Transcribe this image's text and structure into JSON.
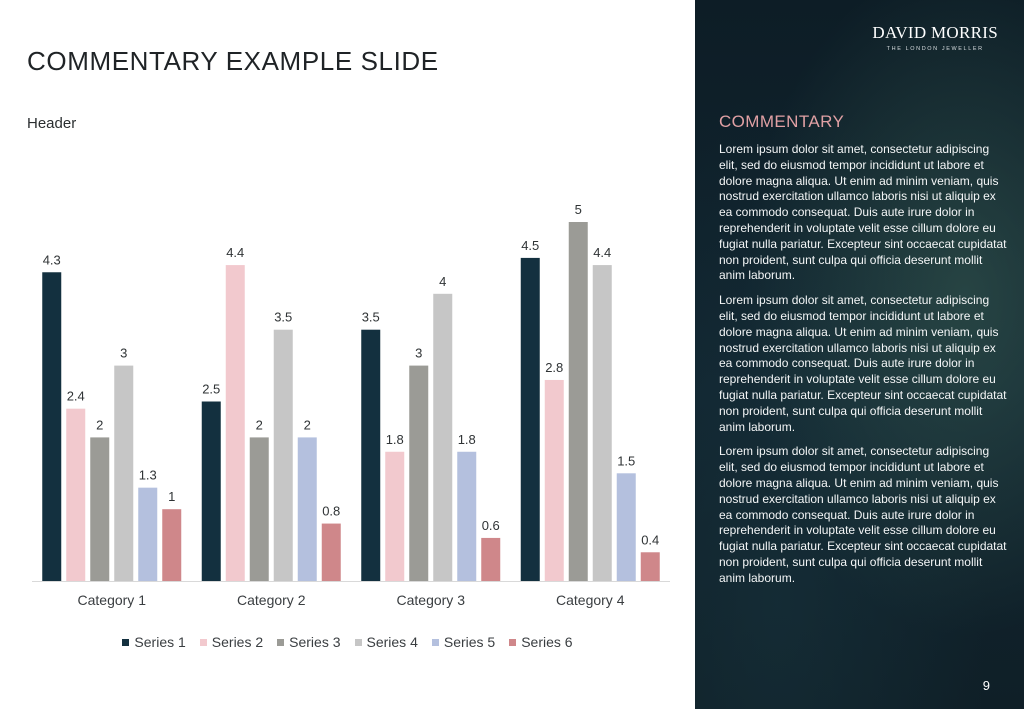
{
  "slide": {
    "title": "COMMENTARY EXAMPLE SLIDE",
    "header": "Header",
    "page_number": "9"
  },
  "brand": {
    "name": "DAVID MORRIS",
    "tagline": "THE LONDON JEWELLER"
  },
  "commentary": {
    "title": "COMMENTARY",
    "paragraphs": [
      "Lorem ipsum dolor sit amet, consectetur adipiscing elit, sed do eiusmod tempor incididunt ut labore et dolore magna aliqua. Ut enim ad minim veniam, quis nostrud exercitation ullamco laboris nisi ut aliquip ex ea commodo consequat. Duis aute irure dolor in reprehenderit in voluptate velit esse cillum dolore eu fugiat nulla pariatur. Excepteur sint occaecat cupidatat non proident, sunt culpa qui officia deserunt mollit anim laborum.",
      "Lorem ipsum dolor sit amet, consectetur adipiscing elit, sed do eiusmod tempor incididunt ut labore et dolore magna aliqua. Ut enim ad minim veniam, quis nostrud exercitation ullamco laboris nisi ut aliquip ex ea commodo consequat. Duis aute irure dolor in reprehenderit in voluptate velit esse cillum dolore eu fugiat nulla pariatur. Excepteur sint occaecat cupidatat non proident, sunt culpa qui officia deserunt mollit anim laborum.",
      "Lorem ipsum dolor sit amet, consectetur adipiscing elit, sed do eiusmod tempor incididunt ut labore et dolore magna aliqua. Ut enim ad minim veniam, quis nostrud exercitation ullamco laboris nisi ut aliquip ex ea commodo consequat. Duis aute irure dolor in reprehenderit in voluptate velit esse cillum dolore eu fugiat nulla pariatur. Excepteur sint occaecat cupidatat non proident, sunt culpa qui officia deserunt mollit anim laborum."
    ]
  },
  "chart_data": {
    "type": "bar",
    "title": "",
    "xlabel": "",
    "ylabel": "",
    "ylim": [
      0,
      5
    ],
    "grid": false,
    "legend_position": "bottom",
    "categories": [
      "Category 1",
      "Category 2",
      "Category 3",
      "Category 4"
    ],
    "series": [
      {
        "name": "Series 1",
        "color": "#13303f",
        "values": [
          4.3,
          2.5,
          3.5,
          4.5
        ]
      },
      {
        "name": "Series 2",
        "color": "#f2c9ce",
        "values": [
          2.4,
          4.4,
          1.8,
          2.8
        ]
      },
      {
        "name": "Series 3",
        "color": "#9b9b96",
        "values": [
          2,
          2,
          3,
          5
        ]
      },
      {
        "name": "Series 4",
        "color": "#c6c6c6",
        "values": [
          3,
          3.5,
          4,
          4.4
        ]
      },
      {
        "name": "Series 5",
        "color": "#b4c0de",
        "values": [
          1.3,
          2,
          1.8,
          1.5
        ]
      },
      {
        "name": "Series 6",
        "color": "#cf878a",
        "values": [
          1,
          0.8,
          0.6,
          0.4
        ]
      }
    ]
  }
}
